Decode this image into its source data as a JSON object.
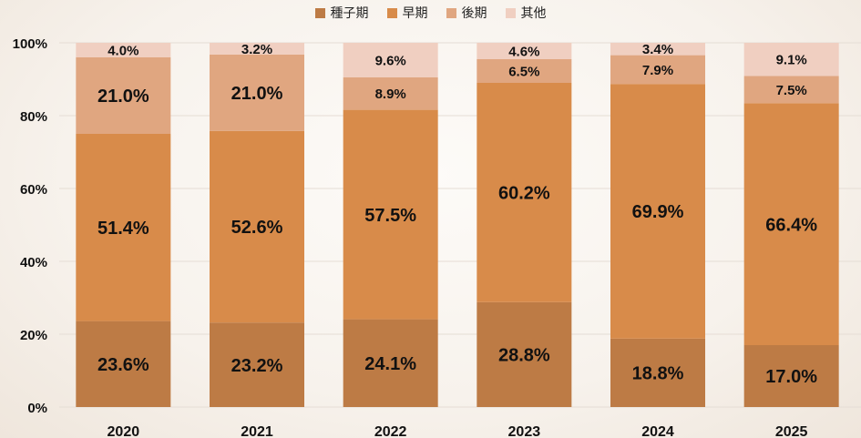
{
  "chart_data": {
    "type": "bar",
    "stacked": true,
    "categories": [
      "2020",
      "2021",
      "2022",
      "2023",
      "2024",
      "2025"
    ],
    "series": [
      {
        "name": "種子期",
        "color": "#bd7b45",
        "values": [
          23.6,
          23.2,
          24.1,
          28.8,
          18.8,
          17.0
        ]
      },
      {
        "name": "早期",
        "color": "#d88b4a",
        "values": [
          51.4,
          52.6,
          57.5,
          60.2,
          69.9,
          66.4
        ]
      },
      {
        "name": "後期",
        "color": "#e0a680",
        "values": [
          21.0,
          21.0,
          8.9,
          6.5,
          7.9,
          7.5
        ]
      },
      {
        "name": "其他",
        "color": "#f0cfc1",
        "values": [
          4.0,
          3.2,
          9.6,
          4.6,
          3.4,
          9.1
        ]
      }
    ],
    "labels": [
      [
        "23.6%",
        "23.2%",
        "24.1%",
        "28.8%",
        "18.8%",
        "17.0%"
      ],
      [
        "51.4%",
        "52.6%",
        "57.5%",
        "60.2%",
        "69.9%",
        "66.4%"
      ],
      [
        "21.0%",
        "21.0%",
        "8.9%",
        "6.5%",
        "7.9%",
        "7.5%"
      ],
      [
        "4.0%",
        "3.2%",
        "9.6%",
        "4.6%",
        "3.4%",
        "9.1%"
      ]
    ],
    "yticks": [
      "0%",
      "20%",
      "40%",
      "60%",
      "80%",
      "100%"
    ],
    "ylim": [
      0,
      100
    ],
    "grid": true,
    "legend_position": "top-center"
  }
}
